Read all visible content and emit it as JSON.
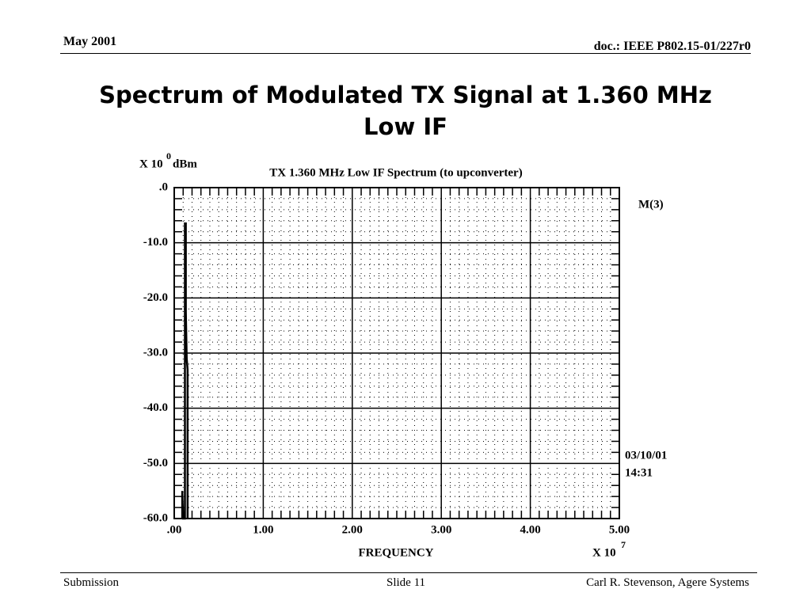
{
  "header": {
    "date": "May 2001",
    "doc": "doc.: IEEE P802.15-01/227r0"
  },
  "slide_title": "Spectrum of Modulated TX Signal at 1.360 MHz Low IF",
  "footer": {
    "left": "Submission",
    "center": "Slide 11",
    "right": "Carl R. Stevenson, Agere Systems"
  },
  "chart_data": {
    "type": "line",
    "title": "TX 1.360 MHz Low IF Spectrum (to upconverter)",
    "xlabel": "FREQUENCY",
    "x_scale": "X 10",
    "x_exponent": 7,
    "y_scale": "X 10",
    "y_exponent": 0,
    "y_unit": "dBm",
    "annotations": [
      "M(3)",
      "03/10/01",
      "14:31"
    ],
    "x": [
      0.09,
      0.09,
      0.1,
      0.12,
      0.12,
      0.13,
      0.13,
      0.14,
      0.15,
      0.15
    ],
    "series": [
      {
        "color": "#000000",
        "values": [
          -60,
          -55,
          -60,
          -60,
          -6.5,
          -6.5,
          -22.5,
          -31,
          -33,
          -60
        ]
      }
    ],
    "xlim": [
      0,
      5
    ],
    "ylim": [
      -60,
      0
    ],
    "xticks": [
      {
        "value": 0,
        "label": ".00"
      },
      {
        "value": 1,
        "label": "1.00"
      },
      {
        "value": 2,
        "label": "2.00"
      },
      {
        "value": 3,
        "label": "3.00"
      },
      {
        "value": 4,
        "label": "4.00"
      },
      {
        "value": 5,
        "label": "5.00"
      }
    ],
    "yticks": [
      {
        "value": 0,
        "label": ".0"
      },
      {
        "value": -10,
        "label": "-10.0"
      },
      {
        "value": -20,
        "label": "-20.0"
      },
      {
        "value": -30,
        "label": "-30.0"
      },
      {
        "value": -40,
        "label": "-40.0"
      },
      {
        "value": -50,
        "label": "-50.0"
      },
      {
        "value": -60,
        "label": "-60.0"
      }
    ],
    "grid": true,
    "minor_grid": {
      "x": 10,
      "y": 5
    }
  }
}
